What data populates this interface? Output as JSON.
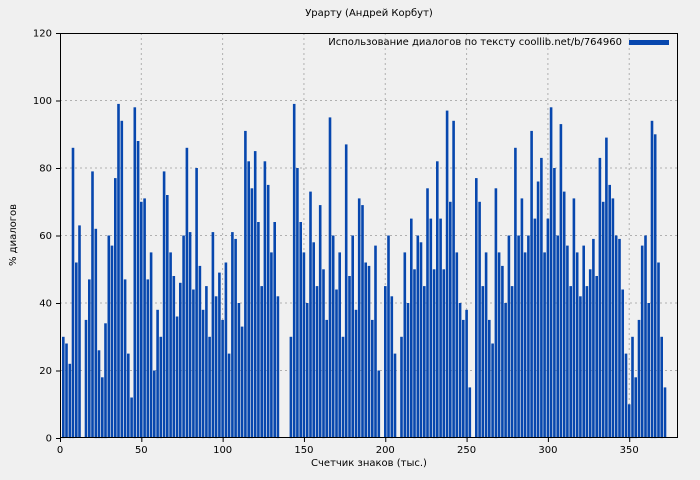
{
  "title": "Урарту (Андрей Корбут)",
  "legend": {
    "label": "Использование диалогов по тексту coollib.net/b/764960"
  },
  "axes": {
    "x": {
      "label": "Счетчик знаков (тыс.)",
      "ticks": [
        0,
        50,
        100,
        150,
        200,
        250,
        300,
        350
      ],
      "min": 0,
      "max": 380
    },
    "y": {
      "label": "% диалогов",
      "ticks": [
        0,
        20,
        40,
        60,
        80,
        100,
        120
      ],
      "min": 0,
      "max": 120
    }
  },
  "colors": {
    "bar": "#0747ae",
    "background": "#f0f0f0",
    "grid": "#b0b0b0",
    "axis": "#000000"
  },
  "chart_data": {
    "type": "bar",
    "title": "Урарту (Андрей Корбут)",
    "xlabel": "Счетчик знаков (тыс.)",
    "ylabel": "% диалогов",
    "xlim": [
      0,
      380
    ],
    "ylim": [
      0,
      120
    ],
    "grid": true,
    "legend_position": "top-right-inside",
    "series_label": "Использование диалогов по тексту coollib.net/b/764960",
    "x_start": 0,
    "x_step": 2,
    "values": [
      0,
      30,
      28,
      22,
      86,
      52,
      63,
      0,
      35,
      47,
      79,
      62,
      26,
      18,
      34,
      60,
      57,
      77,
      99,
      94,
      47,
      25,
      12,
      98,
      88,
      70,
      71,
      47,
      55,
      20,
      38,
      30,
      79,
      72,
      55,
      48,
      36,
      46,
      60,
      86,
      61,
      44,
      80,
      51,
      38,
      45,
      30,
      61,
      42,
      49,
      35,
      52,
      25,
      61,
      59,
      40,
      33,
      91,
      82,
      74,
      85,
      64,
      45,
      82,
      75,
      55,
      64,
      42,
      0,
      0,
      0,
      30,
      99,
      80,
      64,
      55,
      40,
      73,
      58,
      45,
      69,
      50,
      35,
      95,
      60,
      44,
      55,
      30,
      87,
      48,
      60,
      38,
      71,
      69,
      52,
      51,
      35,
      57,
      20,
      0,
      45,
      60,
      42,
      25,
      0,
      30,
      55,
      40,
      65,
      50,
      60,
      58,
      45,
      74,
      65,
      50,
      82,
      65,
      50,
      97,
      70,
      94,
      55,
      40,
      35,
      38,
      15,
      0,
      77,
      70,
      45,
      55,
      35,
      28,
      74,
      55,
      51,
      40,
      60,
      45,
      86,
      60,
      71,
      55,
      60,
      91,
      65,
      76,
      83,
      55,
      65,
      98,
      80,
      60,
      93,
      73,
      57,
      45,
      71,
      55,
      42,
      57,
      45,
      50,
      59,
      48,
      83,
      70,
      89,
      75,
      71,
      60,
      59,
      44,
      25,
      10,
      30,
      18,
      35,
      57,
      60,
      40,
      94,
      90,
      52,
      30,
      15,
      0,
      0,
      0
    ]
  }
}
